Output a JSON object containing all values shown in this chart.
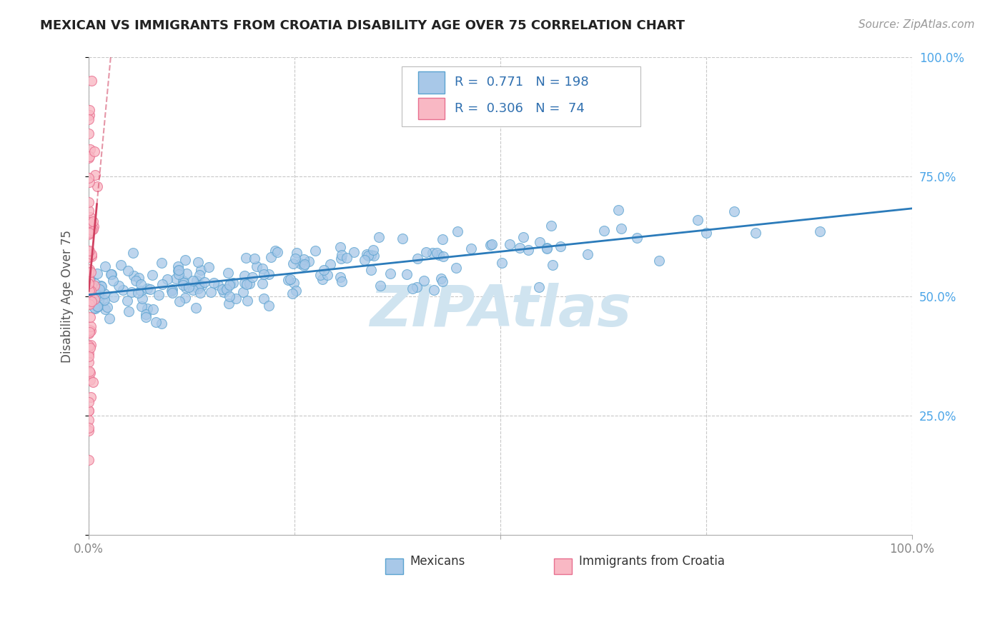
{
  "title": "MEXICAN VS IMMIGRANTS FROM CROATIA DISABILITY AGE OVER 75 CORRELATION CHART",
  "source": "Source: ZipAtlas.com",
  "ylabel": "Disability Age Over 75",
  "watermark": "ZIPAtlas",
  "xlim": [
    0,
    1
  ],
  "ylim": [
    0,
    1
  ],
  "series1": {
    "name": "Mexicans",
    "dot_color": "#a8c8e8",
    "edge_color": "#5ba3d0",
    "R": 0.771,
    "N": 198,
    "trend_color": "#2b7bba"
  },
  "series2": {
    "name": "Immigrants from Croatia",
    "dot_color": "#f9b8c4",
    "edge_color": "#e87090",
    "R": 0.306,
    "N": 74,
    "trend_color": "#d04060"
  },
  "legend_R_color": "#3070b0",
  "legend_N_color": "#d03030",
  "bg_color": "#ffffff",
  "grid_color": "#c8c8c8",
  "title_color": "#222222",
  "axis_color": "#aaaaaa",
  "watermark_color": "#d0e4f0",
  "right_tick_color": "#4da6e8",
  "bottom_tick_color": "#888888"
}
